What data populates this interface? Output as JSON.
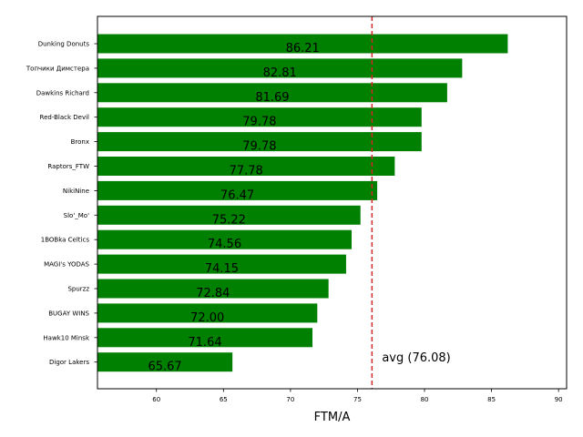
{
  "chart_data": {
    "type": "bar",
    "orientation": "horizontal",
    "categories": [
      "Dunking Donuts",
      "Топчики Димстера",
      "Dawkins Richard",
      "Red-Black Devil",
      "Bronx",
      "Raptors_FTW",
      "NikiNine",
      "Slo'_Mo'",
      "1BOBka Celtics",
      "MAGI's YODAS",
      "Spurzz",
      "BUGAY WINS",
      "Hawk10 Minsk",
      "Digor Lakers"
    ],
    "values": [
      86.21,
      82.81,
      81.69,
      79.78,
      79.78,
      77.78,
      76.47,
      75.22,
      74.56,
      74.15,
      72.84,
      72.0,
      71.64,
      65.67
    ],
    "data_labels": [
      "86.21",
      "82.81",
      "81.69",
      "79.78",
      "79.78",
      "77.78",
      "76.47",
      "75.22",
      "74.56",
      "74.15",
      "72.84",
      "72.00",
      "71.64",
      "65.67"
    ],
    "bar_color": "#008000",
    "xlabel": "FTM/A",
    "ylabel": "",
    "xlim": [
      55.6,
      90.6
    ],
    "xticks": [
      60,
      65,
      70,
      75,
      80,
      85,
      90
    ],
    "reference_line": {
      "value": 76.08,
      "label": "avg (76.08)",
      "color": "#d62728",
      "style": "dashed"
    },
    "grid": false
  }
}
